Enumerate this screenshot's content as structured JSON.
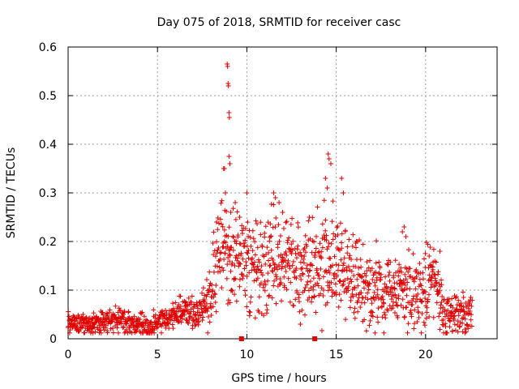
{
  "chart_data": {
    "type": "scatter",
    "title": "Day 075 of 2018, SRMTID for receiver casc",
    "xlabel": "GPS time / hours",
    "ylabel": "SRMTID / TECUs",
    "xlim": [
      0,
      24
    ],
    "ylim": [
      0,
      0.6
    ],
    "x_ticks": [
      0,
      5,
      10,
      15,
      20
    ],
    "y_ticks": [
      0,
      0.1,
      0.2,
      0.3,
      0.4,
      0.5,
      0.6
    ],
    "x_tick_labels": [
      "0",
      "5",
      "10",
      "15",
      "20"
    ],
    "y_tick_labels": [
      "0",
      "0.1",
      "0.2",
      "0.3",
      "0.4",
      "0.5",
      "0.6"
    ],
    "grid": true,
    "marker": "plus",
    "color": "#e00000",
    "trend": [
      [
        0.0,
        0.035
      ],
      [
        0.5,
        0.03
      ],
      [
        1.0,
        0.03
      ],
      [
        1.5,
        0.032
      ],
      [
        2.0,
        0.032
      ],
      [
        2.5,
        0.04
      ],
      [
        3.0,
        0.04
      ],
      [
        3.5,
        0.028
      ],
      [
        4.0,
        0.025
      ],
      [
        4.5,
        0.028
      ],
      [
        5.0,
        0.035
      ],
      [
        5.5,
        0.045
      ],
      [
        6.0,
        0.05
      ],
      [
        6.5,
        0.055
      ],
      [
        7.0,
        0.05
      ],
      [
        7.5,
        0.065
      ],
      [
        8.0,
        0.09
      ],
      [
        8.5,
        0.19
      ],
      [
        9.0,
        0.16
      ],
      [
        9.5,
        0.17
      ],
      [
        10.0,
        0.16
      ],
      [
        10.5,
        0.15
      ],
      [
        11.0,
        0.14
      ],
      [
        11.5,
        0.17
      ],
      [
        12.0,
        0.155
      ],
      [
        12.5,
        0.15
      ],
      [
        13.0,
        0.13
      ],
      [
        13.5,
        0.15
      ],
      [
        14.0,
        0.14
      ],
      [
        14.5,
        0.17
      ],
      [
        15.0,
        0.15
      ],
      [
        15.5,
        0.13
      ],
      [
        16.0,
        0.12
      ],
      [
        16.5,
        0.11
      ],
      [
        17.0,
        0.1
      ],
      [
        17.5,
        0.1
      ],
      [
        18.0,
        0.1
      ],
      [
        18.5,
        0.09
      ],
      [
        19.0,
        0.095
      ],
      [
        19.5,
        0.09
      ],
      [
        20.0,
        0.1
      ],
      [
        20.5,
        0.13
      ],
      [
        21.0,
        0.05
      ],
      [
        21.5,
        0.045
      ],
      [
        22.0,
        0.05
      ],
      [
        22.6,
        0.055
      ]
    ],
    "spread": [
      [
        0.0,
        0.01
      ],
      [
        7.5,
        0.015
      ],
      [
        8.0,
        0.04
      ],
      [
        10.0,
        0.05
      ],
      [
        15.0,
        0.05
      ],
      [
        18.0,
        0.035
      ],
      [
        20.5,
        0.04
      ],
      [
        21.0,
        0.02
      ],
      [
        22.6,
        0.02
      ]
    ],
    "scatter_point_count": 1500,
    "random_seed": 75,
    "outlier_points": [
      [
        8.7,
        0.35
      ],
      [
        8.75,
        0.35
      ],
      [
        8.9,
        0.565
      ],
      [
        8.92,
        0.56
      ],
      [
        8.95,
        0.525
      ],
      [
        8.97,
        0.52
      ],
      [
        9.0,
        0.465
      ],
      [
        9.02,
        0.455
      ],
      [
        9.0,
        0.375
      ],
      [
        9.05,
        0.36
      ],
      [
        8.8,
        0.3
      ],
      [
        9.35,
        0.28
      ],
      [
        9.6,
        0.25
      ],
      [
        10.0,
        0.3
      ],
      [
        11.5,
        0.3
      ],
      [
        11.6,
        0.29
      ],
      [
        11.8,
        0.28
      ],
      [
        14.55,
        0.38
      ],
      [
        14.6,
        0.37
      ],
      [
        14.7,
        0.36
      ],
      [
        14.4,
        0.33
      ],
      [
        14.5,
        0.31
      ],
      [
        15.3,
        0.33
      ],
      [
        15.4,
        0.3
      ],
      [
        18.7,
        0.22
      ],
      [
        18.8,
        0.23
      ],
      [
        18.9,
        0.21
      ],
      [
        20.8,
        0.18
      ],
      [
        8.3,
        0.24
      ],
      [
        9.1,
        0.26
      ],
      [
        12.0,
        0.26
      ],
      [
        13.5,
        0.25
      ],
      [
        16.2,
        0.2
      ],
      [
        20.2,
        0.17
      ]
    ],
    "bottom_markers": [
      {
        "x": 9.7,
        "y": 0
      },
      {
        "x": 13.8,
        "y": 0
      }
    ]
  }
}
